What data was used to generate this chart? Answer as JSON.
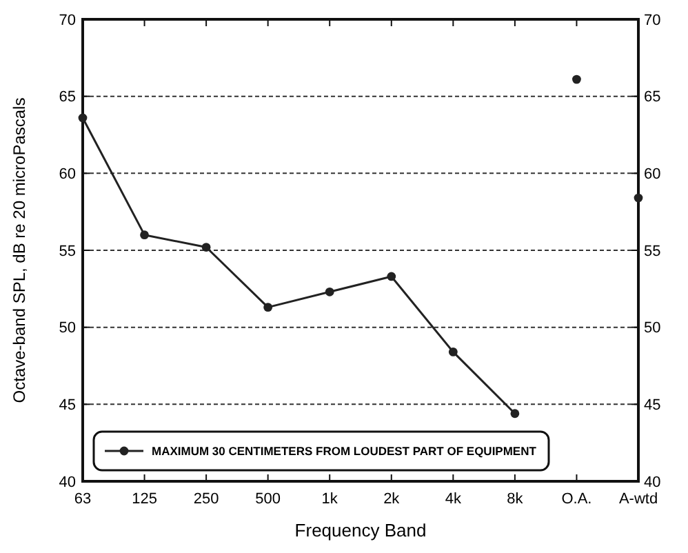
{
  "chart_data": {
    "type": "line",
    "xlabel": "Frequency Band",
    "ylabel": "Octave-band SPL, dB re 20 microPascals",
    "categories": [
      "63",
      "125",
      "250",
      "500",
      "1k",
      "2k",
      "4k",
      "8k",
      "O.A.",
      "A-wtd"
    ],
    "series": [
      {
        "name": "MAXIMUM 30 CENTIMETERS FROM LOUDEST PART OF EQUIPMENT",
        "color": "#222222",
        "values": [
          63.6,
          56.0,
          55.2,
          51.3,
          52.3,
          53.3,
          48.4,
          44.4,
          null,
          null
        ]
      },
      {
        "type": "scatter",
        "color": "#222222",
        "values": [
          null,
          null,
          null,
          null,
          null,
          null,
          null,
          null,
          66.1,
          58.4
        ]
      }
    ],
    "ylim": [
      40,
      70
    ],
    "yticks": [
      40,
      45,
      50,
      55,
      60,
      65,
      70
    ],
    "y2lim": [
      40,
      70
    ],
    "y2ticks": [
      40,
      45,
      50,
      55,
      60,
      65,
      70
    ],
    "grid": "y",
    "legend": "bottom left",
    "marker": "circle",
    "line_style": "solid"
  }
}
